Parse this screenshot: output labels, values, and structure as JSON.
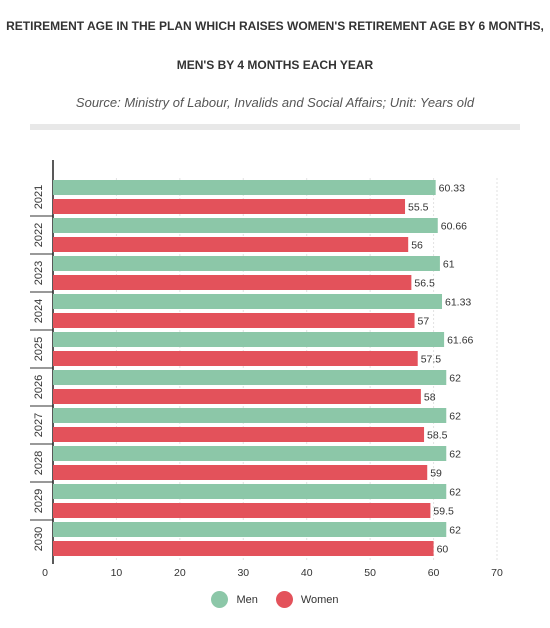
{
  "header": {
    "title_line1": "RETIREMENT AGE IN THE PLAN WHICH RAISES WOMEN'S RETIREMENT AGE BY 6 MONTHS,",
    "title_line2": "MEN'S BY 4 MONTHS EACH YEAR",
    "subtitle": "Source: Ministry of Labour, Invalids and Social Affairs; Unit: Years old"
  },
  "chart_data": {
    "type": "bar",
    "orientation": "horizontal",
    "categories": [
      "2021",
      "2022",
      "2023",
      "2024",
      "2025",
      "2026",
      "2027",
      "2028",
      "2029",
      "2030"
    ],
    "series": [
      {
        "name": "Men",
        "color": "#8cc7a8",
        "values": [
          60.33,
          60.66,
          61,
          61.33,
          61.66,
          62,
          62,
          62,
          62,
          62
        ]
      },
      {
        "name": "Women",
        "color": "#e3525b",
        "values": [
          55.5,
          56,
          56.5,
          57,
          57.5,
          58,
          58.5,
          59,
          59.5,
          60
        ]
      }
    ],
    "xlim": [
      0,
      70
    ],
    "xticks": [
      0,
      10,
      20,
      30,
      40,
      50,
      60,
      70
    ],
    "grid": true,
    "legend_position": "bottom"
  }
}
